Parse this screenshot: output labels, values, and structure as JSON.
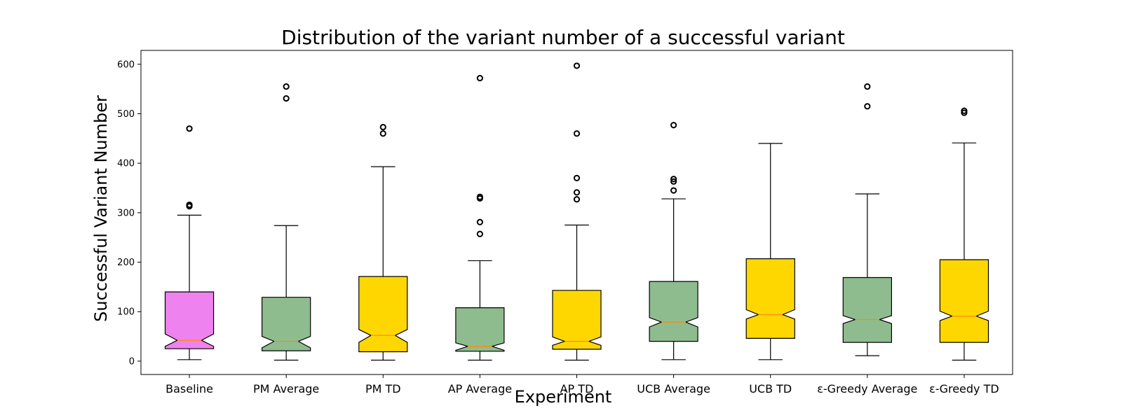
{
  "chart_data": {
    "type": "box",
    "title": "Distribution of the variant number of a successful variant",
    "xlabel": "Experiment",
    "ylabel": "Successful Variant Number",
    "ylim": [
      -27,
      628
    ],
    "yticks": [
      0,
      100,
      200,
      300,
      400,
      500,
      600
    ],
    "notched": true,
    "grid": false,
    "legend": "none",
    "colors": {
      "pink": "#ee82ee",
      "green": "#8fbc8f",
      "gold": "#ffd700",
      "median": "#ff8c00",
      "outline": "#000000"
    },
    "categories": [
      "Baseline",
      "PM Average",
      "PM TD",
      "AP Average",
      "AP TD",
      "UCB Average",
      "UCB TD",
      "ε-Greedy Average",
      "ε-Greedy TD"
    ],
    "boxes": [
      {
        "label": "Baseline",
        "color": "pink",
        "whisker_low": 3,
        "q1": 25,
        "median": 42,
        "q3": 140,
        "whisker_high": 295,
        "notch_low": 30,
        "notch_high": 55,
        "outliers": [
          470,
          316,
          313
        ]
      },
      {
        "label": "PM Average",
        "color": "green",
        "whisker_low": 2,
        "q1": 21,
        "median": 40,
        "q3": 129,
        "whisker_high": 274,
        "notch_low": 27,
        "notch_high": 50,
        "outliers": [
          555,
          531
        ]
      },
      {
        "label": "PM TD",
        "color": "gold",
        "whisker_low": 2,
        "q1": 19,
        "median": 52,
        "q3": 171,
        "whisker_high": 393,
        "notch_low": 38,
        "notch_high": 64,
        "outliers": [
          473,
          460
        ]
      },
      {
        "label": "AP Average",
        "color": "green",
        "whisker_low": 2,
        "q1": 20,
        "median": 30,
        "q3": 108,
        "whisker_high": 203,
        "notch_low": 22,
        "notch_high": 37,
        "outliers": [
          572,
          332,
          329,
          281,
          257
        ]
      },
      {
        "label": "AP TD",
        "color": "gold",
        "whisker_low": 2,
        "q1": 24,
        "median": 40,
        "q3": 143,
        "whisker_high": 275,
        "notch_low": 32,
        "notch_high": 49,
        "outliers": [
          597,
          460,
          370,
          341,
          327
        ]
      },
      {
        "label": "UCB Average",
        "color": "green",
        "whisker_low": 3,
        "q1": 40,
        "median": 79,
        "q3": 161,
        "whisker_high": 328,
        "notch_low": 69,
        "notch_high": 88,
        "outliers": [
          477,
          368,
          363,
          345
        ]
      },
      {
        "label": "UCB TD",
        "color": "gold",
        "whisker_low": 3,
        "q1": 46,
        "median": 94,
        "q3": 207,
        "whisker_high": 440,
        "notch_low": 85,
        "notch_high": 104,
        "outliers": []
      },
      {
        "label": "ε-Greedy Average",
        "color": "green",
        "whisker_low": 11,
        "q1": 38,
        "median": 84,
        "q3": 169,
        "whisker_high": 338,
        "notch_low": 76,
        "notch_high": 92,
        "outliers": [
          555,
          515
        ]
      },
      {
        "label": "ε-Greedy TD",
        "color": "gold",
        "whisker_low": 2,
        "q1": 38,
        "median": 91,
        "q3": 205,
        "whisker_high": 441,
        "notch_low": 82,
        "notch_high": 101,
        "outliers": [
          506,
          502
        ]
      }
    ]
  }
}
